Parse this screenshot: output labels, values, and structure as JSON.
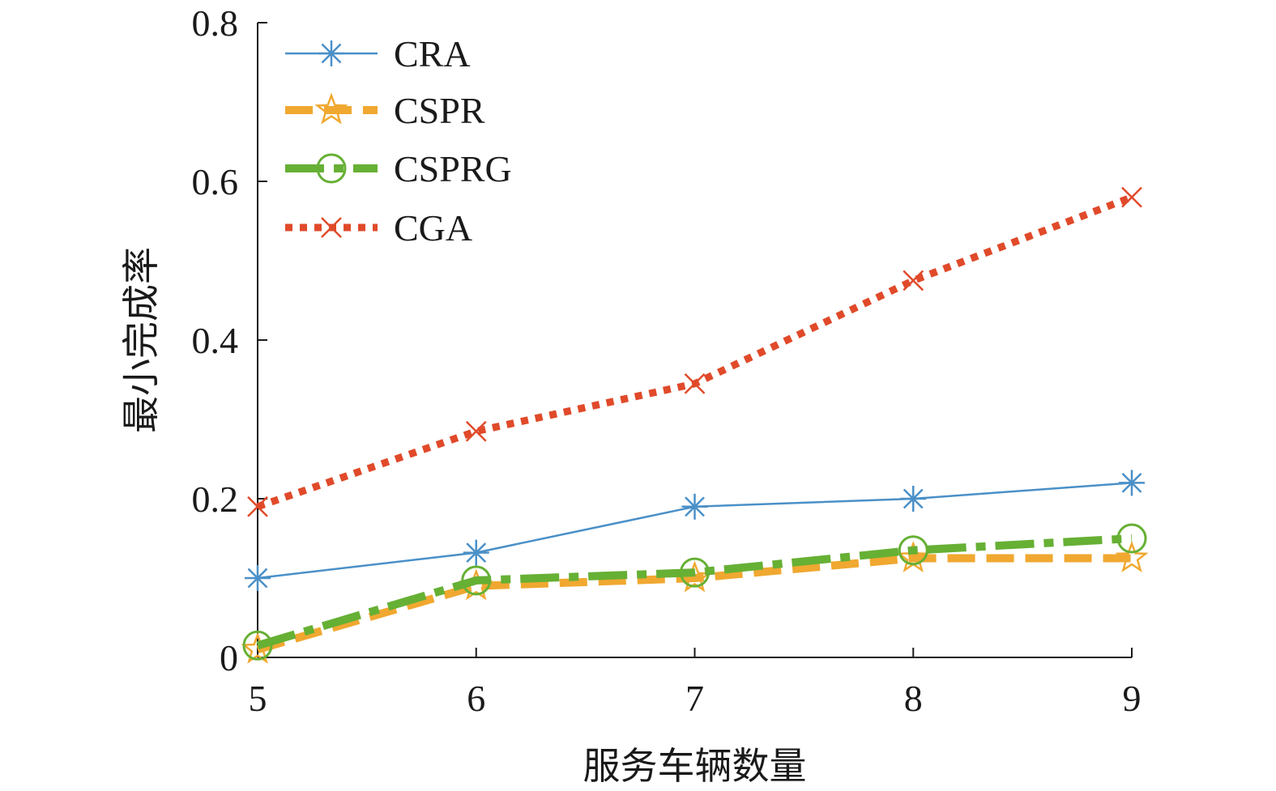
{
  "chart_data": {
    "type": "line",
    "title": "",
    "xlabel": "服务车辆数量",
    "ylabel": "最小完成率",
    "x": [
      5,
      6,
      7,
      8,
      9
    ],
    "xticks": [
      "5",
      "6",
      "7",
      "8",
      "9"
    ],
    "ylim": [
      0,
      0.8
    ],
    "yticks": [
      "0",
      "0.2",
      "0.4",
      "0.6",
      "0.8"
    ],
    "ytick_values": [
      0,
      0.2,
      0.4,
      0.6,
      0.8
    ],
    "grid": false,
    "legend_position": "top-left",
    "series": [
      {
        "name": "CRA",
        "values": [
          0.1,
          0.132,
          0.19,
          0.2,
          0.22
        ],
        "color": "#4a90c8",
        "style": "solid",
        "marker": "asterisk"
      },
      {
        "name": "CSPR",
        "values": [
          0.01,
          0.09,
          0.1,
          0.125,
          0.125
        ],
        "color": "#f0a830",
        "style": "dashed",
        "marker": "star"
      },
      {
        "name": "CSPRG",
        "values": [
          0.015,
          0.097,
          0.107,
          0.135,
          0.15
        ],
        "color": "#66b034",
        "style": "dashdot",
        "marker": "circle"
      },
      {
        "name": "CGA",
        "values": [
          0.19,
          0.285,
          0.345,
          0.475,
          0.58
        ],
        "color": "#e04a2a",
        "style": "dotted",
        "marker": "x"
      }
    ]
  }
}
